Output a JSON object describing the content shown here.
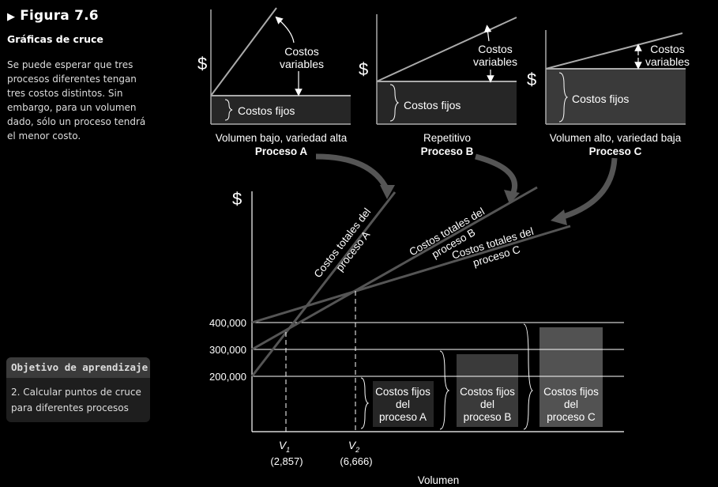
{
  "sidebar": {
    "figure_label": "Figura 7.6",
    "subtitle": "Gráficas de cruce",
    "description": "Se puede esperar que tres procesos diferentes tengan tres costos distintos. Sin embargo, para un volumen dado, sólo un proceso tendrá el menor costo.",
    "objective_header": "Objetivo de aprendizaje",
    "objective_text": "2. Calcular puntos de cruce para diferentes procesos"
  },
  "top_panels": {
    "currency_symbol": "$",
    "fixed_label": "Costos fijos",
    "variable_label_line1": "Costos",
    "variable_label_line2": "variables",
    "process_a": {
      "caption": "Volumen bajo, variedad alta",
      "name": "Proceso A"
    },
    "process_b": {
      "caption": "Repetitivo",
      "name": "Proceso B"
    },
    "process_c": {
      "caption": "Volumen alto, variedad baja",
      "name": "Proceso C"
    }
  },
  "chart_data": {
    "type": "line",
    "ylabel": "$",
    "xlabel": "Volumen",
    "y_ticks": [
      "400,000",
      "300,000",
      "200,000"
    ],
    "series": [
      {
        "name": "Costos totales del proceso A",
        "line1": "Costos totales del",
        "line2": "proceso A",
        "fixed_cost": 200000
      },
      {
        "name": "Costos totales del proceso B",
        "line1": "Costos totales del",
        "line2": "proceso B",
        "fixed_cost": 300000
      },
      {
        "name": "Costos totales del proceso C",
        "line1": "Costos totales del",
        "line2": "proceso C",
        "fixed_cost": 400000
      }
    ],
    "crossover_points": [
      {
        "label": "V",
        "sub": "1",
        "value": "(2,857)"
      },
      {
        "label": "V",
        "sub": "2",
        "value": "(6,666)"
      }
    ],
    "fixed_cost_bars": [
      {
        "line1": "Costos fijos",
        "line2": "del",
        "line3": "proceso A"
      },
      {
        "line1": "Costos fijos",
        "line2": "del",
        "line3": "proceso B"
      },
      {
        "line1": "Costos fijos",
        "line2": "del",
        "line3": "proceso C"
      }
    ]
  }
}
